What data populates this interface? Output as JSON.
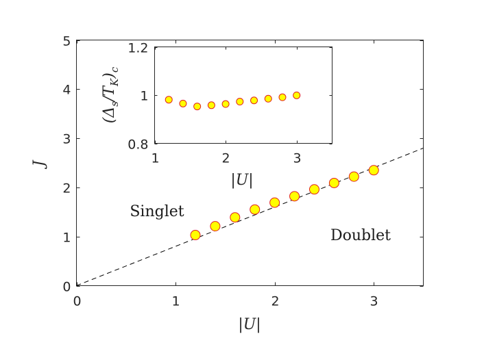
{
  "chart_data": [
    {
      "type": "scatter",
      "title": "",
      "xlabel": "|U|",
      "ylabel": "J",
      "xlim": [
        0,
        3.5
      ],
      "ylim": [
        0,
        5
      ],
      "xticks": [
        "0",
        "1",
        "2",
        "3"
      ],
      "yticks": [
        "0",
        "1",
        "2",
        "3",
        "4",
        "5"
      ],
      "grid": false,
      "annotations": [
        "Singlet",
        "Doublet"
      ],
      "marker_fill": "#ffff00",
      "marker_edge": "#e02020",
      "fit_line": {
        "style": "dashed",
        "color": "#000000",
        "x": [
          0,
          3.5
        ],
        "y": [
          0,
          2.8
        ]
      },
      "series": [
        {
          "x": [
            1.2,
            1.4,
            1.6,
            1.8,
            2.0,
            2.2,
            2.4,
            2.6,
            2.8,
            3.0
          ],
          "y": [
            1.03,
            1.21,
            1.39,
            1.55,
            1.69,
            1.82,
            1.96,
            2.09,
            2.22,
            2.35
          ]
        }
      ]
    },
    {
      "type": "scatter",
      "title": "",
      "xlabel": "|U|",
      "ylabel": "(Δs/TK)c",
      "xlim": [
        1,
        3.5
      ],
      "ylim": [
        0.8,
        1.2
      ],
      "xticks": [
        "1",
        "2",
        "3"
      ],
      "yticks": [
        "0.8",
        "1",
        "1.2"
      ],
      "grid": false,
      "marker_fill": "#ffff00",
      "marker_edge": "#e02020",
      "series": [
        {
          "x": [
            1.2,
            1.4,
            1.6,
            1.8,
            2.0,
            2.2,
            2.4,
            2.6,
            2.8,
            3.0
          ],
          "y": [
            0.981,
            0.965,
            0.953,
            0.958,
            0.963,
            0.973,
            0.978,
            0.985,
            0.991,
            0.999
          ]
        }
      ]
    }
  ]
}
